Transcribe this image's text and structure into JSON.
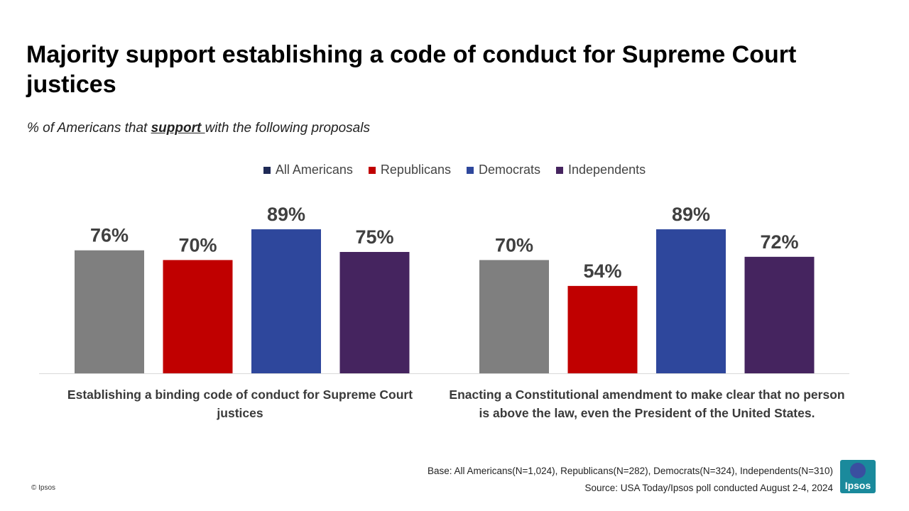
{
  "title": "Majority support establishing a code of conduct for Supreme Court justices",
  "subtitle": {
    "prefix": "% of Americans that ",
    "emphasis": "support ",
    "suffix": "with the following proposals"
  },
  "footer": {
    "base": "Base: All Americans(N=1,024), Republicans(N=282), Democrats(N=324), Independents(N=310)",
    "source": "Source: USA Today/Ipsos poll conducted August 2-4, 2024",
    "copyright": "© Ipsos",
    "logo_text": "Ipsos"
  },
  "colors": {
    "All Americans": "#7f7f7f",
    "Republicans": "#c00000",
    "Democrats": "#2e479c",
    "Independents": "#45245f",
    "legend_All Americans": "#1f2a56"
  },
  "chart_data": {
    "type": "bar",
    "categories": [
      "Establishing a binding code of conduct for Supreme Court justices",
      "Enacting a Constitutional amendment to make clear that no person is above the law, even the President of the United States."
    ],
    "series": [
      {
        "name": "All Americans",
        "values": [
          76,
          70
        ]
      },
      {
        "name": "Republicans",
        "values": [
          70,
          54
        ]
      },
      {
        "name": "Democrats",
        "values": [
          89,
          89
        ]
      },
      {
        "name": "Independents",
        "values": [
          75,
          72
        ]
      }
    ],
    "unit": "%",
    "ylim": [
      0,
      100
    ],
    "grid": false,
    "legend": "top-center"
  }
}
